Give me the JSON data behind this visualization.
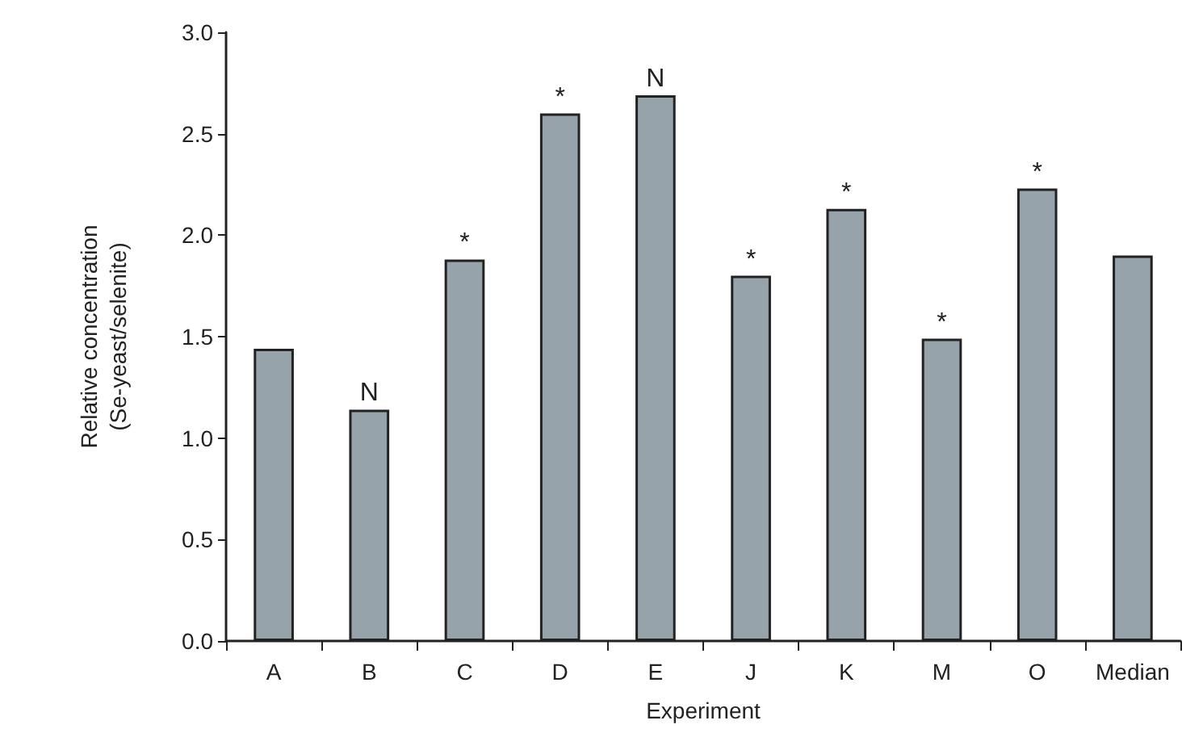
{
  "chart_data": {
    "type": "bar",
    "xlabel": "Experiment",
    "ylabel": "Relative concentration\n(Se-yeast/selenite)",
    "categories": [
      "A",
      "B",
      "C",
      "D",
      "E",
      "J",
      "K",
      "M",
      "O",
      "Median"
    ],
    "values": [
      1.44,
      1.14,
      1.88,
      2.6,
      2.69,
      1.8,
      2.13,
      1.49,
      2.23,
      1.9
    ],
    "color": "#96a3aa",
    "ylim": [
      0,
      3
    ],
    "yticks": [
      {
        "value": 0,
        "label": "0.0"
      },
      {
        "value": 0.5,
        "label": "0.5"
      },
      {
        "value": 1,
        "label": "1.0"
      },
      {
        "value": 1.5,
        "label": "1.5"
      },
      {
        "value": 2,
        "label": "2.0"
      },
      {
        "value": 2.5,
        "label": "2.5"
      },
      {
        "value": 3,
        "label": "3.0"
      }
    ],
    "annotations": [
      {
        "text": "N",
        "x": "B",
        "y": 1.14
      },
      {
        "text": "*",
        "x": "C",
        "y": 1.88
      },
      {
        "text": "*",
        "x": "D",
        "y": 2.6
      },
      {
        "text": "N",
        "x": "E",
        "y": 2.69
      },
      {
        "text": "*",
        "x": "J",
        "y": 1.8
      },
      {
        "text": "*",
        "x": "K",
        "y": 2.13
      },
      {
        "text": "*",
        "x": "M",
        "y": 1.49
      },
      {
        "text": "*",
        "x": "O",
        "y": 2.23
      }
    ],
    "grid": false
  }
}
